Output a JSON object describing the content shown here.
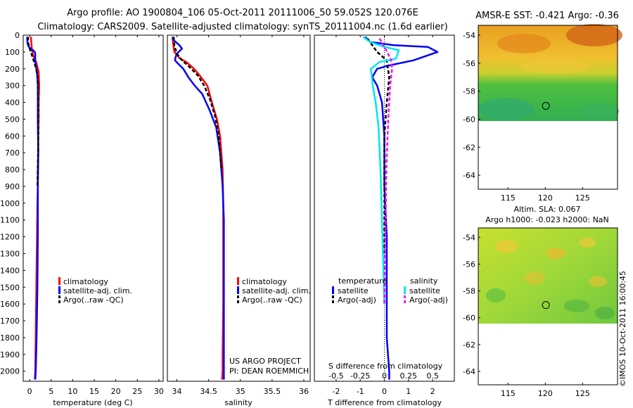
{
  "title_line1": "Argo profile: AO 1900804_106 05-Oct-2011 20111006_50 59.052S 120.076E",
  "title_line2": "Climatology: CARS2009. Satellite-adjusted climatology: synTS_20111004.nc (1.6d earlier)",
  "footer_vertical": "©IMOS 10-Oct-2011 16:00:45",
  "chart_data": [
    {
      "id": "temperature",
      "type": "line",
      "xlabel": "temperature (deg C)",
      "xlim": [
        -1.5,
        31
      ],
      "xticks": [
        0,
        5,
        10,
        15,
        20,
        25,
        30
      ],
      "ylim": [
        2060,
        0
      ],
      "yticks": [
        0,
        100,
        200,
        300,
        400,
        500,
        600,
        700,
        800,
        900,
        1000,
        1100,
        1200,
        1300,
        1400,
        1500,
        1600,
        1700,
        1800,
        1900,
        2000
      ],
      "legend": [
        "climatology",
        "satellite-adj. clim.",
        "Argo(..raw -QC)"
      ],
      "series": [
        {
          "name": "climatology",
          "color": "#ff0000",
          "style": "solid",
          "x": [
            0.3,
            0.5,
            0.8,
            1.5,
            2.1,
            2.2,
            2.1,
            2.1,
            2.0,
            2.0,
            1.9,
            1.9,
            1.8,
            1.7,
            1.6,
            1.5,
            1.4,
            1.3,
            1.2
          ],
          "y": [
            10,
            80,
            120,
            160,
            220,
            300,
            400,
            500,
            600,
            700,
            800,
            900,
            1000,
            1200,
            1400,
            1600,
            1800,
            2000,
            2050
          ]
        },
        {
          "name": "satellite-adj. clim.",
          "color": "#0000ff",
          "style": "solid",
          "x": [
            -0.6,
            -0.5,
            -0.2,
            0.3,
            0.8,
            1.2,
            1.3,
            1.3,
            1.3,
            1.7,
            1.9,
            1.9,
            2.0,
            1.9,
            1.9,
            1.8,
            1.6,
            1.4,
            1.3
          ],
          "y": [
            10,
            50,
            70,
            80,
            90,
            100,
            110,
            130,
            160,
            220,
            300,
            500,
            700,
            900,
            1200,
            1500,
            1800,
            2000,
            2050
          ]
        },
        {
          "name": "Argo(..raw -QC)",
          "color": "#000000",
          "style": "dash",
          "x": [
            -0.4,
            -0.3,
            0.0,
            0.4,
            0.9,
            1.5,
            1.9,
            2.0,
            2.0,
            1.9,
            1.8
          ],
          "y": [
            10,
            50,
            80,
            110,
            150,
            200,
            260,
            400,
            600,
            800,
            900
          ]
        }
      ]
    },
    {
      "id": "salinity",
      "type": "line",
      "xlabel": "salinity",
      "xlim": [
        33.85,
        36.1
      ],
      "xticks": [
        34,
        34.5,
        35,
        35.5,
        36
      ],
      "ylim": [
        2060,
        0
      ],
      "legend": [
        "climatology",
        "satellite-adj. clim.",
        "Argo(..raw -QC)"
      ],
      "annotation": [
        "US ARGO PROJECT",
        "PI: DEAN ROEMMICH"
      ],
      "series": [
        {
          "name": "climatology",
          "color": "#ff0000",
          "style": "solid",
          "x": [
            33.93,
            33.94,
            33.96,
            34.05,
            34.15,
            34.27,
            34.38,
            34.48,
            34.55,
            34.63,
            34.68,
            34.72,
            34.73,
            34.73,
            34.73,
            34.72,
            34.72,
            34.71
          ],
          "y": [
            10,
            50,
            100,
            140,
            160,
            200,
            250,
            300,
            400,
            500,
            600,
            800,
            1000,
            1300,
            1600,
            1900,
            2000,
            2050
          ]
        },
        {
          "name": "satellite-adj. clim.",
          "color": "#0000ff",
          "style": "solid",
          "x": [
            33.93,
            33.95,
            34.04,
            34.08,
            34.0,
            33.98,
            33.97,
            34.02,
            34.1,
            34.18,
            34.28,
            34.4,
            34.52,
            34.62,
            34.68,
            34.72,
            34.74,
            34.74,
            34.74,
            34.74
          ],
          "y": [
            10,
            30,
            60,
            80,
            110,
            130,
            150,
            170,
            200,
            250,
            300,
            350,
            450,
            550,
            700,
            900,
            1100,
            1400,
            1800,
            2050
          ]
        },
        {
          "name": "Argo(..raw -QC)",
          "color": "#000000",
          "style": "dash",
          "x": [
            33.95,
            33.96,
            34.0,
            34.08,
            34.2,
            34.33,
            34.43,
            34.52,
            34.6,
            34.66,
            34.7
          ],
          "y": [
            10,
            60,
            110,
            150,
            190,
            240,
            300,
            380,
            480,
            600,
            800
          ]
        }
      ]
    },
    {
      "id": "difference",
      "type": "line",
      "xlabel": "T difference from climatology",
      "xlabel_top": "S difference from climatology",
      "xlim": [
        -2.9,
        2.9
      ],
      "xticks": [
        -2,
        -1,
        0,
        1,
        2
      ],
      "xticks_top": [
        -0.5,
        -0.25,
        0,
        0.25,
        0.5
      ],
      "ylim": [
        2060,
        0
      ],
      "legend_headers": [
        "temperature",
        "salinity"
      ],
      "legend": [
        "satellite",
        "Argo(-adj)",
        "satellite",
        "Argo(-adj)"
      ],
      "series": [
        {
          "name": "temperature satellite",
          "color": "#0000ff",
          "style": "solid",
          "x": [
            -0.8,
            -0.6,
            0.4,
            1.8,
            2.2,
            1.2,
            0.2,
            -0.3,
            -0.5,
            -0.3,
            -0.1,
            0.0,
            0.0,
            0.1,
            0.1,
            0.1,
            0.2,
            0.2
          ],
          "y": [
            10,
            40,
            60,
            70,
            100,
            150,
            180,
            200,
            250,
            300,
            400,
            600,
            900,
            1200,
            1500,
            1800,
            2000,
            2050
          ]
        },
        {
          "name": "temperature Argo(-adj)",
          "color": "#000000",
          "style": "dash",
          "x": [
            -0.7,
            -0.5,
            -0.3,
            0.1,
            0.2,
            0.1,
            0.0,
            0.0,
            0.0
          ],
          "y": [
            20,
            60,
            100,
            150,
            250,
            400,
            600,
            900,
            1300
          ]
        },
        {
          "name": "salinity satellite",
          "color": "#00e5ee",
          "style": "solid",
          "x": [
            -0.22,
            -0.15,
            0.0,
            0.15,
            0.12,
            -0.05,
            -0.14,
            -0.12,
            -0.09,
            -0.06,
            -0.04,
            -0.03,
            -0.02,
            -0.01,
            0.0
          ],
          "y": [
            10,
            40,
            70,
            90,
            140,
            160,
            200,
            300,
            400,
            550,
            800,
            1000,
            1200,
            1400,
            1600
          ]
        },
        {
          "name": "salinity Argo(-adj)",
          "color": "#ff00ff",
          "style": "dash",
          "x": [
            -0.05,
            0.03,
            0.07,
            0.08,
            0.06,
            0.04,
            0.02,
            0.01,
            0.0
          ],
          "y": [
            20,
            100,
            150,
            200,
            300,
            500,
            800,
            1200,
            1600
          ]
        }
      ]
    },
    {
      "id": "sst-map",
      "type": "heatmap",
      "title": "AMSR-E SST: -0.421  Argo: -0.36",
      "xlim": [
        111,
        129.7
      ],
      "ylim": [
        -65,
        -53.3
      ],
      "xticks": [
        115,
        120,
        125
      ],
      "yticks": [
        -54,
        -56,
        -58,
        -60,
        -62,
        -64
      ],
      "marker": {
        "lon": 120.076,
        "lat": -59.052
      }
    },
    {
      "id": "sla-map",
      "type": "heatmap",
      "title_lines": [
        "Altim. SLA: 0.067",
        "Argo h1000: -0.023 h2000: NaN"
      ],
      "xlim": [
        111,
        129.7
      ],
      "ylim": [
        -65,
        -53.3
      ],
      "xticks": [
        115,
        120,
        125
      ],
      "yticks": [
        -54,
        -56,
        -58,
        -60,
        -62,
        -64
      ],
      "marker": {
        "lon": 120.076,
        "lat": -59.052
      }
    }
  ]
}
